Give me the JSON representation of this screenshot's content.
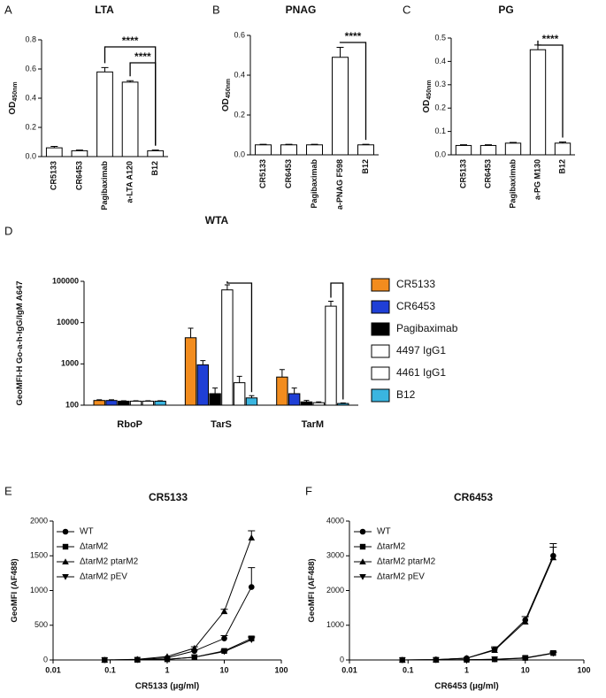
{
  "chart_data": [
    {
      "type": "bar",
      "panel": "A",
      "title": "LTA",
      "ylabel": "OD",
      "ylabel_sub": "450nm",
      "categories": [
        "CR5133",
        "CR6453",
        "Pagibaximab",
        "a-LTA A120",
        "B12"
      ],
      "values": [
        0.06,
        0.04,
        0.58,
        0.51,
        0.04
      ],
      "errors": [
        0.01,
        0.005,
        0.03,
        0.01,
        0.005
      ],
      "color": "#ffffff",
      "ylim": [
        0,
        0.8
      ],
      "yticks": [
        {
          "value": 0,
          "label": "0.0"
        },
        {
          "value": 0.2,
          "label": "0.2"
        },
        {
          "value": 0.4,
          "label": "0.4"
        },
        {
          "value": 0.6,
          "label": "0.6"
        },
        {
          "value": 0.8,
          "label": "0.8"
        }
      ],
      "brackets": [
        {
          "text": "****",
          "between": [
            "Pagibaximab",
            "B12"
          ]
        },
        {
          "text": "****",
          "between": [
            "a-LTA A120",
            "B12"
          ]
        }
      ]
    },
    {
      "type": "bar",
      "panel": "B",
      "title": "PNAG",
      "ylabel": "OD",
      "ylabel_sub": "450nm",
      "categories": [
        "CR5133",
        "CR6453",
        "Pagibaximab",
        "a-PNAG F598",
        "B12"
      ],
      "values": [
        0.05,
        0.05,
        0.05,
        0.49,
        0.05
      ],
      "errors": [
        0.003,
        0.003,
        0.003,
        0.05,
        0.003
      ],
      "color": "#ffffff",
      "ylim": [
        0,
        0.6
      ],
      "yticks": [
        {
          "value": 0,
          "label": "0.0"
        },
        {
          "value": 0.2,
          "label": "0.2"
        },
        {
          "value": 0.4,
          "label": "0.4"
        },
        {
          "value": 0.6,
          "label": "0.6"
        }
      ],
      "brackets": [
        {
          "text": "****",
          "between": [
            "a-PNAG F598",
            "B12"
          ]
        }
      ]
    },
    {
      "type": "bar",
      "panel": "C",
      "title": "PG",
      "ylabel": "OD",
      "ylabel_sub": "450nm",
      "categories": [
        "CR5133",
        "CR6453",
        "Pagibaximab",
        "a-PG M130",
        "B12"
      ],
      "values": [
        0.04,
        0.04,
        0.05,
        0.45,
        0.05
      ],
      "errors": [
        0.003,
        0.003,
        0.003,
        0.02,
        0.005
      ],
      "color": "#ffffff",
      "ylim": [
        0,
        0.5
      ],
      "yticks": [
        {
          "value": 0,
          "label": "0.0"
        },
        {
          "value": 0.1,
          "label": "0.1"
        },
        {
          "value": 0.2,
          "label": "0.2"
        },
        {
          "value": 0.3,
          "label": "0.3"
        },
        {
          "value": 0.4,
          "label": "0.4"
        },
        {
          "value": 0.5,
          "label": "0.5"
        }
      ],
      "brackets": [
        {
          "text": "****",
          "between": [
            "a-PG M130",
            "B12"
          ]
        }
      ]
    },
    {
      "type": "bar",
      "panel": "D",
      "title": "WTA",
      "ylabel": "GeoMFI-H Go-a-h-IgG/IgM A647",
      "log_y": true,
      "categories": [
        "RboP",
        "TarS",
        "TarM"
      ],
      "series": [
        {
          "name": "CR5133",
          "color": "#f28c1e",
          "values": [
            130,
            4300,
            480
          ],
          "errors": [
            5,
            3000,
            250
          ]
        },
        {
          "name": "CR6453",
          "color": "#1f3fd6",
          "values": [
            130,
            950,
            190
          ],
          "errors": [
            5,
            250,
            70
          ]
        },
        {
          "name": "Pagibaximab",
          "color": "#000000",
          "values": [
            125,
            190,
            120
          ],
          "errors": [
            3,
            70,
            10
          ]
        },
        {
          "name": "4497 IgG1",
          "color": "#ffffff",
          "values": [
            125,
            62000,
            115
          ],
          "errors": [
            3,
            20000,
            5
          ]
        },
        {
          "name": "4461 IgG1",
          "color": "#ffffff",
          "values": [
            125,
            350,
            25000
          ],
          "errors": [
            3,
            150,
            8000
          ]
        },
        {
          "name": "B12",
          "color": "#3ab5e0",
          "values": [
            125,
            150,
            110
          ],
          "errors": [
            3,
            20,
            3
          ]
        }
      ],
      "ylim": [
        100,
        100000
      ],
      "yticks": [
        100,
        1000,
        10000,
        100000
      ],
      "brackets": [
        {
          "category": "TarS",
          "between": [
            "4497 IgG1",
            "B12"
          ]
        },
        {
          "category": "TarM",
          "between": [
            "4461 IgG1",
            "B12"
          ]
        }
      ]
    },
    {
      "type": "line",
      "panel": "E",
      "title": "CR5133",
      "xlabel": "CR5133 (µg/ml)",
      "ylabel": "GeoMFI (AF488)",
      "log_x": true,
      "x": [
        0.08,
        0.3,
        1,
        3,
        10,
        30
      ],
      "series": [
        {
          "name": "WT",
          "color": "#000000",
          "marker": "circle",
          "values": [
            0,
            5,
            30,
            130,
            310,
            1050
          ],
          "errors": [
            0,
            0,
            0,
            20,
            40,
            280
          ]
        },
        {
          "name": "ΔtarM2",
          "color": "#000000",
          "marker": "square",
          "values": [
            0,
            2,
            10,
            40,
            130,
            310
          ],
          "errors": [
            0,
            0,
            0,
            0,
            10,
            30
          ]
        },
        {
          "name": "ΔtarM2 ptarM2",
          "color": "#000000",
          "marker": "triangle-up",
          "values": [
            0,
            10,
            50,
            170,
            700,
            1760
          ],
          "errors": [
            0,
            0,
            0,
            20,
            30,
            100
          ]
        },
        {
          "name": "ΔtarM2 pEV",
          "color": "#000000",
          "marker": "triangle-down",
          "values": [
            0,
            2,
            10,
            40,
            120,
            290
          ],
          "errors": [
            0,
            0,
            0,
            0,
            10,
            30
          ]
        }
      ],
      "xlim": [
        0.01,
        100
      ],
      "xticks": [
        0.01,
        0.1,
        1,
        10,
        100
      ],
      "ylim": [
        0,
        2000
      ],
      "yticks": [
        0,
        500,
        1000,
        1500,
        2000
      ]
    },
    {
      "type": "line",
      "panel": "F",
      "title": "CR6453",
      "xlabel": "CR6453 (µg/ml)",
      "ylabel": "GeoMFI (AF488)",
      "log_x": true,
      "x": [
        0.08,
        0.3,
        1,
        3,
        10,
        30
      ],
      "series": [
        {
          "name": "WT",
          "color": "#000000",
          "marker": "circle",
          "values": [
            0,
            10,
            50,
            300,
            1150,
            3000
          ],
          "errors": [
            0,
            0,
            0,
            80,
            100,
            350
          ]
        },
        {
          "name": "ΔtarM2",
          "color": "#000000",
          "marker": "square",
          "values": [
            0,
            2,
            5,
            20,
            60,
            200
          ],
          "errors": [
            0,
            0,
            0,
            0,
            10,
            30
          ]
        },
        {
          "name": "ΔtarM2 ptarM2",
          "color": "#000000",
          "marker": "triangle-up",
          "values": [
            0,
            10,
            50,
            280,
            1100,
            2950
          ],
          "errors": [
            0,
            0,
            0,
            60,
            150,
            300
          ]
        },
        {
          "name": "ΔtarM2 pEV",
          "color": "#000000",
          "marker": "triangle-down",
          "values": [
            0,
            2,
            5,
            20,
            50,
            190
          ],
          "errors": [
            0,
            0,
            0,
            0,
            10,
            30
          ]
        }
      ],
      "xlim": [
        0.01,
        100
      ],
      "xticks": [
        0.01,
        0.1,
        1,
        10,
        100
      ],
      "ylim": [
        0,
        4000
      ],
      "yticks": [
        0,
        1000,
        2000,
        3000,
        4000
      ]
    }
  ]
}
